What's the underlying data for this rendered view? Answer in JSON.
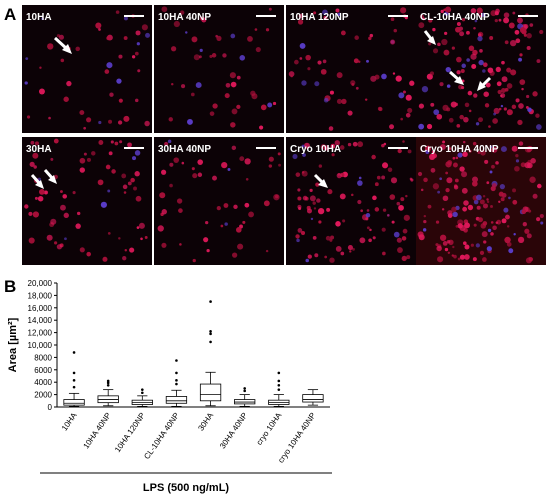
{
  "panel_a": {
    "letter": "A",
    "images": [
      {
        "label": "10HA"
      },
      {
        "label": "10HA 40NP"
      },
      {
        "label": "10HA 120NP"
      },
      {
        "label": "CL-10HA 40NP"
      },
      {
        "label": "30HA"
      },
      {
        "label": "30HA 40NP"
      },
      {
        "label": "Cryo 10HA"
      },
      {
        "label": "Cryo 10HA 40NP"
      }
    ]
  },
  "panel_b": {
    "letter": "B"
  },
  "chart_data": {
    "type": "box",
    "ylabel": "Area [µm²]",
    "xlabel": "LPS (500 ng/mL)",
    "categories": [
      "10HA",
      "10HA 40NP",
      "10HA 120NP",
      "CL-10HA 40NP",
      "30HA",
      "30HA 40NP",
      "cryo 10HA",
      "cryo 10HA 40NP"
    ],
    "boxes": [
      {
        "min": 100,
        "q1": 300,
        "median": 600,
        "q3": 1200,
        "max": 2200,
        "outliers": [
          3200,
          4300,
          5500,
          8800
        ]
      },
      {
        "min": 200,
        "q1": 700,
        "median": 1200,
        "q3": 1800,
        "max": 2800,
        "outliers": [
          3500,
          3900,
          4200
        ]
      },
      {
        "min": 100,
        "q1": 400,
        "median": 700,
        "q3": 1100,
        "max": 1800,
        "outliers": [
          2300,
          2800
        ]
      },
      {
        "min": 100,
        "q1": 600,
        "median": 1000,
        "q3": 1700,
        "max": 2700,
        "outliers": [
          3700,
          4300,
          5500,
          7500
        ]
      },
      {
        "min": 200,
        "q1": 1000,
        "median": 2000,
        "q3": 3700,
        "max": 5600,
        "outliers": [
          10500,
          11800,
          12200,
          17000
        ]
      },
      {
        "min": 100,
        "q1": 500,
        "median": 800,
        "q3": 1200,
        "max": 2000,
        "outliers": [
          2600,
          3000
        ]
      },
      {
        "min": 100,
        "q1": 400,
        "median": 700,
        "q3": 1100,
        "max": 2000,
        "outliers": [
          2800,
          3500,
          4200,
          5500
        ]
      },
      {
        "min": 300,
        "q1": 800,
        "median": 1200,
        "q3": 2000,
        "max": 2800,
        "outliers": []
      }
    ],
    "ylim": [
      0,
      20000
    ],
    "yticks": [
      0,
      2000,
      4000,
      6000,
      8000,
      {
        "value": 10000,
        "label": "10,000"
      },
      {
        "value": 12000,
        "label": "12,000"
      },
      {
        "value": 14000,
        "label": "14,000"
      },
      {
        "value": 16000,
        "label": "16,000"
      },
      {
        "value": 18000,
        "label": "18,000"
      },
      {
        "value": 20000,
        "label": "20,000"
      }
    ]
  }
}
